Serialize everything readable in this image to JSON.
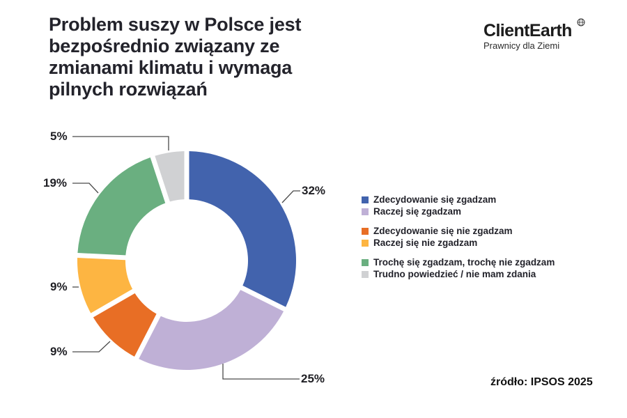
{
  "header": {
    "title": "Problem suszy w Polsce jest bezpośrednio związany ze zmianami klimatu i wymaga pilnych rozwiązań"
  },
  "brand": {
    "name": "ClientEarth",
    "tagline": "Prawnicy dla Ziemi",
    "globe_icon": "globe-icon"
  },
  "source": "źródło: IPSOS 2025",
  "chart_data": {
    "type": "pie",
    "subtype": "donut",
    "title": "Problem suszy w Polsce jest bezpośrednio związany ze zmianami klimatu i wymaga pilnych rozwiązań",
    "categories": [
      "Zdecydowanie się zgadzam",
      "Raczej się zgadzam",
      "Zdecydowanie się nie zgadzam",
      "Raczej się nie zgadzam",
      "Trochę się zgadzam, trochę nie zgadzam",
      "Trudno powiedzieć / nie mam zdania"
    ],
    "values": [
      32,
      25,
      9,
      9,
      19,
      5
    ],
    "labels": [
      "32%",
      "25%",
      "9%",
      "9%",
      "19%",
      "5%"
    ],
    "colors": [
      "#4263ad",
      "#bfb0d6",
      "#e86e25",
      "#fdb542",
      "#6aaf80",
      "#d0d1d3"
    ],
    "order": "clockwise from 12 o'clock",
    "legend_position": "right",
    "source": "źródło: IPSOS 2025"
  },
  "legend": {
    "items": [
      {
        "label": "Zdecydowanie się zgadzam",
        "color": "#4263ad"
      },
      {
        "label": "Raczej się zgadzam",
        "color": "#bfb0d6"
      },
      {
        "label": "Zdecydowanie się nie zgadzam",
        "color": "#e86e25"
      },
      {
        "label": "Raczej się nie zgadzam",
        "color": "#fdb542"
      },
      {
        "label": "Trochę się zgadzam, trochę nie zgadzam",
        "color": "#6aaf80"
      },
      {
        "label": "Trudno powiedzieć / nie mam zdania",
        "color": "#d0d1d3"
      }
    ]
  },
  "callouts": {
    "strongly_agree": "32%",
    "rather_agree": "25%",
    "strongly_disagree": "9%",
    "rather_disagree": "9%",
    "neutral": "19%",
    "dont_know": "5%"
  }
}
